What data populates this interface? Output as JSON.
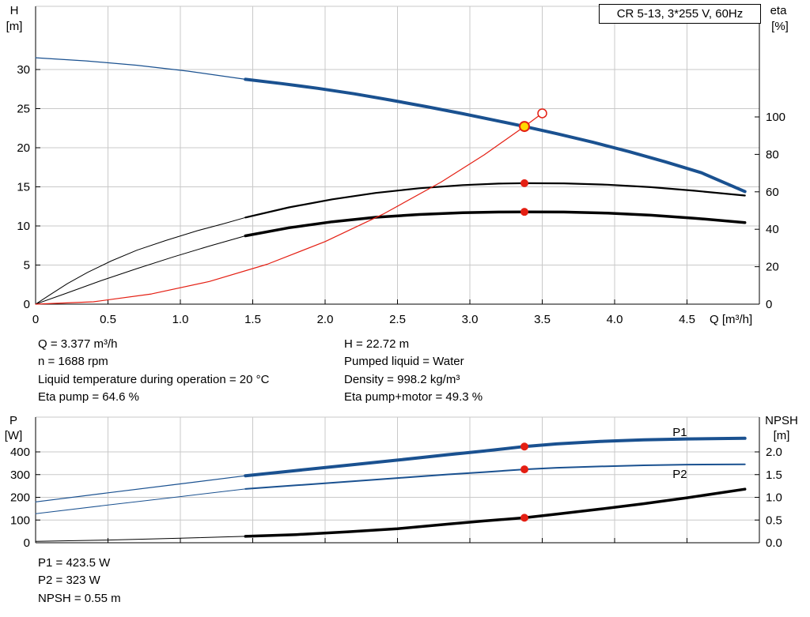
{
  "colors": {
    "blue": "#1a5190",
    "red": "#e41f13",
    "yellow": "#ffd800",
    "black": "#000000",
    "grid": "#c9c9c9"
  },
  "info": {
    "top_left": [
      "Q = 3.377 m³/h",
      "n = 1688 rpm",
      "Liquid temperature during operation = 20 °C",
      "Eta pump = 64.6 %"
    ],
    "top_right": [
      "H = 22.72 m",
      "Pumped liquid = Water",
      "Density = 998.2 kg/m³",
      "Eta pump+motor = 49.3 %"
    ],
    "bottom": [
      "P1 = 423.5 W",
      "P2 = 323 W",
      "NPSH = 0.55 m"
    ]
  },
  "chart_data": [
    {
      "name": "qh-eta-chart",
      "type": "line",
      "title": "CR 5-13, 3*255 V, 60Hz",
      "x_axis": {
        "label": "Q [m³/h]",
        "min": 0,
        "max": 5,
        "ticks": [
          {
            "v": 0,
            "label": "0"
          },
          {
            "v": 0.5,
            "label": "0.5"
          },
          {
            "v": 1,
            "label": "1.0"
          },
          {
            "v": 1.5,
            "label": "1.5"
          },
          {
            "v": 2,
            "label": "2.0"
          },
          {
            "v": 2.5,
            "label": "2.5"
          },
          {
            "v": 3,
            "label": "3.0"
          },
          {
            "v": 3.5,
            "label": "3.5"
          },
          {
            "v": 4,
            "label": "4.0"
          },
          {
            "v": 4.5,
            "label": "4.5"
          }
        ]
      },
      "y_left": {
        "title": "H",
        "unit": "[m]",
        "min": 0,
        "max": 38,
        "ticks": [
          {
            "v": 0,
            "label": "0"
          },
          {
            "v": 5,
            "label": "5"
          },
          {
            "v": 10,
            "label": "10"
          },
          {
            "v": 15,
            "label": "15"
          },
          {
            "v": 20,
            "label": "20"
          },
          {
            "v": 25,
            "label": "25"
          },
          {
            "v": 30,
            "label": "30"
          }
        ]
      },
      "y_right": {
        "title": "eta",
        "unit": "[%]",
        "min": 0,
        "max": 159,
        "ticks": [
          {
            "v": 0,
            "label": "0"
          },
          {
            "v": 20,
            "label": "20"
          },
          {
            "v": 40,
            "label": "40"
          },
          {
            "v": 60,
            "label": "60"
          },
          {
            "v": 80,
            "label": "80"
          },
          {
            "v": 100,
            "label": "100"
          }
        ]
      },
      "series": [
        {
          "name": "pump-curve-extension",
          "axis": "left",
          "color": "blue",
          "width": 1.2,
          "points": [
            [
              0,
              31.5
            ],
            [
              0.35,
              31.1
            ],
            [
              0.7,
              30.55
            ],
            [
              1.05,
              29.8
            ],
            [
              1.45,
              28.75
            ]
          ]
        },
        {
          "name": "pump-curve",
          "axis": "left",
          "color": "blue",
          "width": 4,
          "points": [
            [
              1.45,
              28.75
            ],
            [
              1.7,
              28.2
            ],
            [
              1.95,
              27.6
            ],
            [
              2.2,
              26.9
            ],
            [
              2.45,
              26.1
            ],
            [
              2.7,
              25.25
            ],
            [
              2.95,
              24.35
            ],
            [
              3.2,
              23.4
            ],
            [
              3.377,
              22.72
            ],
            [
              3.6,
              21.8
            ],
            [
              3.85,
              20.7
            ],
            [
              4.1,
              19.5
            ],
            [
              4.35,
              18.2
            ],
            [
              4.6,
              16.8
            ],
            [
              4.9,
              14.4
            ]
          ]
        },
        {
          "name": "eta-pump-extension",
          "axis": "right",
          "color": "black",
          "width": 1,
          "points": [
            [
              0,
              0
            ],
            [
              0.1,
              5
            ],
            [
              0.22,
              11
            ],
            [
              0.36,
              17
            ],
            [
              0.52,
              23
            ],
            [
              0.7,
              28.8
            ],
            [
              0.9,
              34
            ],
            [
              1.12,
              39.3
            ],
            [
              1.3,
              43
            ],
            [
              1.45,
              46.3
            ]
          ]
        },
        {
          "name": "eta-pump",
          "axis": "right",
          "color": "black",
          "width": 2.2,
          "points": [
            [
              1.45,
              46.3
            ],
            [
              1.75,
              51.7
            ],
            [
              2.05,
              56
            ],
            [
              2.35,
              59.4
            ],
            [
              2.65,
              61.9
            ],
            [
              2.95,
              63.6
            ],
            [
              3.2,
              64.4
            ],
            [
              3.377,
              64.6
            ],
            [
              3.65,
              64.5
            ],
            [
              3.95,
              63.8
            ],
            [
              4.25,
              62.5
            ],
            [
              4.55,
              60.6
            ],
            [
              4.9,
              58
            ]
          ]
        },
        {
          "name": "eta-pump-motor-extension",
          "axis": "right",
          "color": "black",
          "width": 1,
          "points": [
            [
              0,
              0
            ],
            [
              0.2,
              5.5
            ],
            [
              0.45,
              12.5
            ],
            [
              0.7,
              19
            ],
            [
              0.95,
              25.2
            ],
            [
              1.2,
              31
            ],
            [
              1.45,
              36.5
            ]
          ]
        },
        {
          "name": "eta-pump-motor",
          "axis": "right",
          "color": "black",
          "width": 3.5,
          "points": [
            [
              1.45,
              36.5
            ],
            [
              1.75,
              40.8
            ],
            [
              2.05,
              44
            ],
            [
              2.35,
              46.4
            ],
            [
              2.65,
              47.9
            ],
            [
              2.95,
              48.8
            ],
            [
              3.2,
              49.2
            ],
            [
              3.377,
              49.3
            ],
            [
              3.65,
              49.2
            ],
            [
              3.95,
              48.6
            ],
            [
              4.25,
              47.5
            ],
            [
              4.55,
              45.9
            ],
            [
              4.9,
              43.6
            ]
          ]
        },
        {
          "name": "system-curve",
          "axis": "left",
          "color": "red",
          "width": 1.2,
          "points": [
            [
              0,
              0
            ],
            [
              0.4,
              0.3
            ],
            [
              0.8,
              1.3
            ],
            [
              1.2,
              2.9
            ],
            [
              1.6,
              5.1
            ],
            [
              2,
              8
            ],
            [
              2.4,
              11.5
            ],
            [
              2.8,
              15.6
            ],
            [
              3.1,
              19.1
            ],
            [
              3.377,
              22.72
            ],
            [
              3.5,
              24.4
            ]
          ]
        }
      ],
      "markers": [
        {
          "name": "eta-pump-duty-marker",
          "q": 3.377,
          "v": 64.6,
          "axis": "right",
          "style": "dot"
        },
        {
          "name": "eta-pump-motor-duty-marker",
          "q": 3.377,
          "v": 49.3,
          "axis": "right",
          "style": "dot"
        },
        {
          "name": "rated-flow-marker",
          "q": 3.5,
          "v": 24.4,
          "axis": "left",
          "style": "open"
        },
        {
          "name": "duty-point-marker",
          "q": 3.377,
          "v": 22.72,
          "axis": "left",
          "style": "duty"
        }
      ],
      "labels": []
    },
    {
      "name": "power-npsh-chart",
      "type": "line",
      "x_axis": {
        "min": 0,
        "max": 5,
        "ticks": [
          {
            "v": 0
          },
          {
            "v": 0.5
          },
          {
            "v": 1
          },
          {
            "v": 1.5
          },
          {
            "v": 2
          },
          {
            "v": 2.5
          },
          {
            "v": 3
          },
          {
            "v": 3.5
          },
          {
            "v": 4
          },
          {
            "v": 4.5
          }
        ]
      },
      "y_left": {
        "title": "P",
        "unit": "[W]",
        "min": 0,
        "max": 553,
        "ticks": [
          {
            "v": 0,
            "label": "0"
          },
          {
            "v": 100,
            "label": "100"
          },
          {
            "v": 200,
            "label": "200"
          },
          {
            "v": 300,
            "label": "300"
          },
          {
            "v": 400,
            "label": "400"
          }
        ]
      },
      "y_right": {
        "title": "NPSH",
        "unit": "[m]",
        "min": 0,
        "max": 2.77,
        "ticks": [
          {
            "v": 0,
            "label": "0.0"
          },
          {
            "v": 0.5,
            "label": "0.5"
          },
          {
            "v": 1,
            "label": "1.0"
          },
          {
            "v": 1.5,
            "label": "1.5"
          },
          {
            "v": 2,
            "label": "2.0"
          }
        ]
      },
      "series": [
        {
          "name": "p1-extension",
          "axis": "left",
          "color": "blue",
          "width": 1.2,
          "points": [
            [
              0,
              180
            ],
            [
              0.5,
              220
            ],
            [
              1,
              259
            ],
            [
              1.45,
              295
            ]
          ]
        },
        {
          "name": "p1",
          "axis": "left",
          "color": "blue",
          "width": 4,
          "points": [
            [
              1.45,
              295
            ],
            [
              1.8,
              318
            ],
            [
              2.15,
              341
            ],
            [
              2.5,
              364
            ],
            [
              2.85,
              388
            ],
            [
              3.1,
              404
            ],
            [
              3.377,
              423.5
            ],
            [
              3.6,
              435
            ],
            [
              3.9,
              446
            ],
            [
              4.2,
              453
            ],
            [
              4.5,
              457
            ],
            [
              4.9,
              460
            ]
          ]
        },
        {
          "name": "p2-extension",
          "axis": "left",
          "color": "blue",
          "width": 1,
          "points": [
            [
              0,
              128
            ],
            [
              0.5,
              166
            ],
            [
              1,
              203
            ],
            [
              1.45,
              237
            ]
          ]
        },
        {
          "name": "p2",
          "axis": "left",
          "color": "blue",
          "width": 2,
          "points": [
            [
              1.45,
              237
            ],
            [
              1.8,
              253
            ],
            [
              2.15,
              269
            ],
            [
              2.5,
              285
            ],
            [
              2.85,
              301
            ],
            [
              3.1,
              311
            ],
            [
              3.377,
              323
            ],
            [
              3.6,
              330
            ],
            [
              3.9,
              336
            ],
            [
              4.2,
              341
            ],
            [
              4.5,
              344
            ],
            [
              4.9,
              345
            ]
          ]
        },
        {
          "name": "npsh-extension",
          "axis": "right",
          "color": "black",
          "width": 1,
          "points": [
            [
              0,
              0.03
            ],
            [
              0.5,
              0.06
            ],
            [
              1,
              0.1
            ],
            [
              1.45,
              0.14
            ]
          ]
        },
        {
          "name": "npsh",
          "axis": "right",
          "color": "black",
          "width": 3.5,
          "points": [
            [
              1.45,
              0.14
            ],
            [
              1.8,
              0.18
            ],
            [
              2.15,
              0.24
            ],
            [
              2.5,
              0.31
            ],
            [
              2.85,
              0.41
            ],
            [
              3.1,
              0.48
            ],
            [
              3.377,
              0.55
            ],
            [
              3.6,
              0.63
            ],
            [
              3.9,
              0.74
            ],
            [
              4.2,
              0.86
            ],
            [
              4.5,
              0.99
            ],
            [
              4.9,
              1.18
            ]
          ]
        }
      ],
      "markers": [
        {
          "name": "p1-duty-marker",
          "q": 3.377,
          "v": 423.5,
          "axis": "left",
          "style": "dot"
        },
        {
          "name": "p2-duty-marker",
          "q": 3.377,
          "v": 323,
          "axis": "left",
          "style": "dot"
        },
        {
          "name": "npsh-duty-marker",
          "q": 3.377,
          "v": 0.55,
          "axis": "right",
          "style": "dot"
        }
      ],
      "labels": [
        {
          "text": "P1",
          "q": 4.4,
          "v": 470,
          "axis": "left"
        },
        {
          "text": "P2",
          "q": 4.4,
          "v": 285,
          "axis": "left"
        }
      ]
    }
  ]
}
